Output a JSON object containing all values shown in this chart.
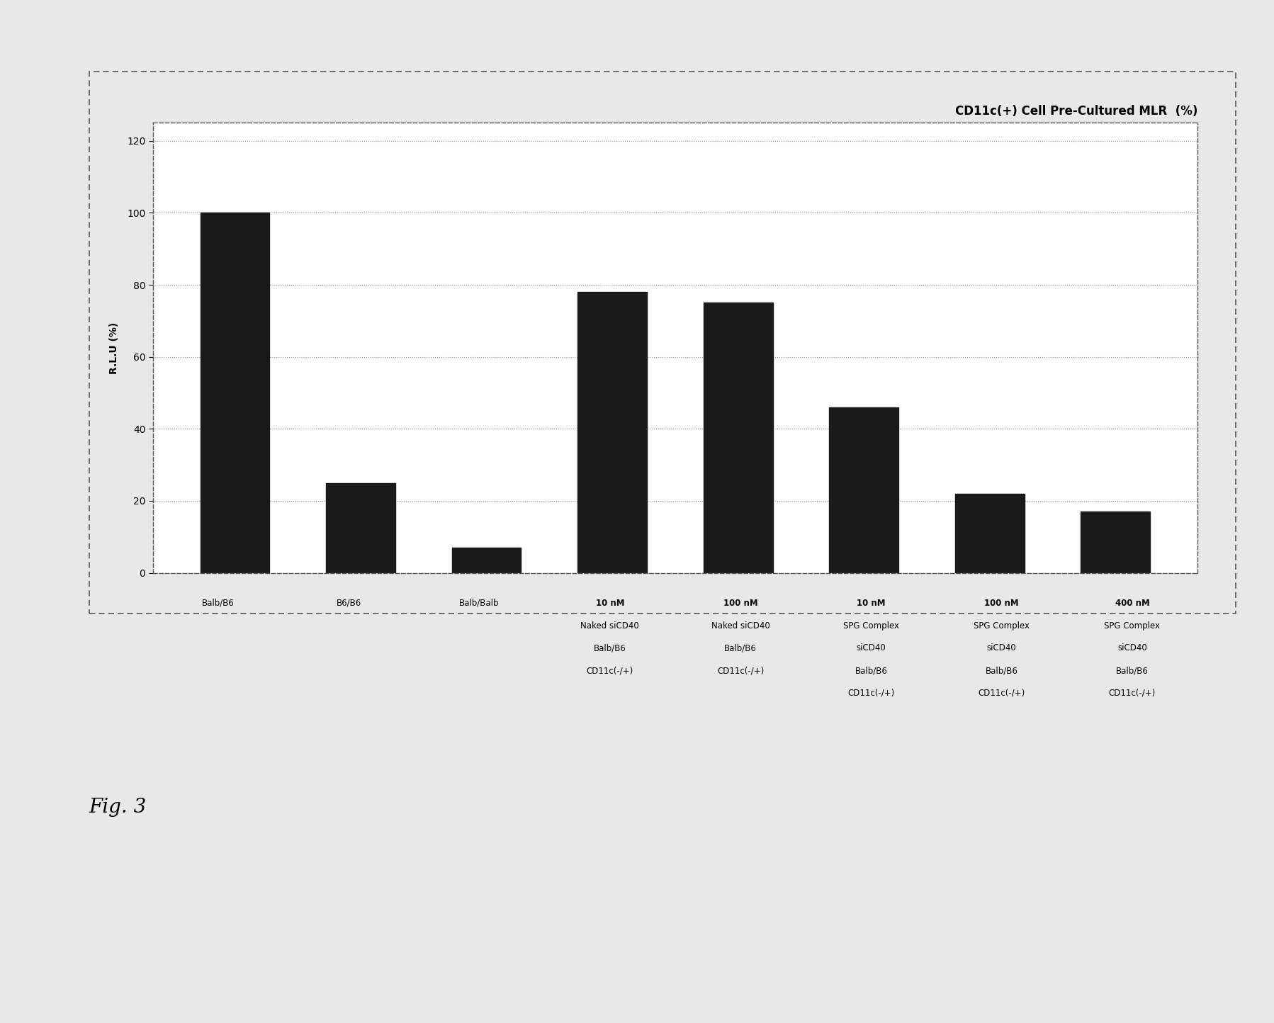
{
  "title": "CD11c(+) Cell Pre-Cultured MLR  (%)",
  "ylabel": "R.L.U (%)",
  "ylim": [
    0,
    125
  ],
  "yticks": [
    0,
    20,
    40,
    60,
    80,
    100,
    120
  ],
  "bar_values": [
    100,
    25,
    7,
    78,
    75,
    46,
    22,
    17
  ],
  "bar_color": "#1a1a1a",
  "bar_labels_line1": [
    "",
    "",
    "",
    "10 nM",
    "100 nM",
    "10 nM",
    "100 nM",
    "400 nM"
  ],
  "bar_labels_line2": [
    "",
    "",
    "",
    "Naked siCD40",
    "Naked siCD40",
    "SPG Complex",
    "SPG Complex",
    "SPG Complex"
  ],
  "bar_labels_line3": [
    "",
    "",
    "",
    "",
    "",
    "siCD40",
    "siCD40",
    "siCD40"
  ],
  "bar_labels_line4": [
    "Balb/B6",
    "B6/B6",
    "Balb/Balb",
    "Balb/B6",
    "Balb/B6",
    "Balb/B6",
    "Balb/B6",
    "Balb/B6"
  ],
  "bar_labels_line5": [
    "",
    "",
    "",
    "CD11c(-/+)",
    "CD11c(-/+)",
    "CD11c(-/+)",
    "CD11c(-/+)",
    "CD11c(-/+)"
  ],
  "fig_label": "Fig. 3",
  "background_color": "#e8e8e8",
  "plot_bg_color": "#ffffff",
  "outer_border_color": "#555555",
  "grid_color": "#888888",
  "title_fontsize": 12,
  "ylabel_fontsize": 10,
  "tick_fontsize": 10,
  "label_fontsize": 8.5
}
